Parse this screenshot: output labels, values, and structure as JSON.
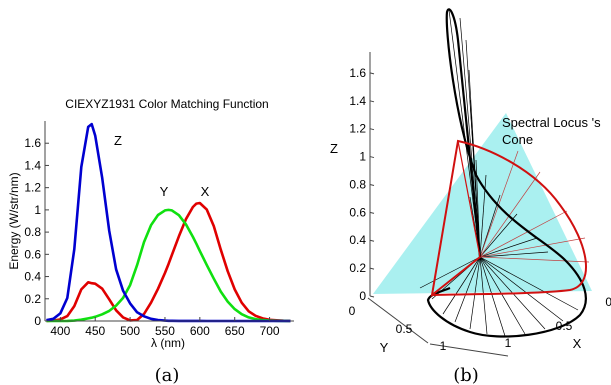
{
  "chart_data": [
    {
      "type": "line",
      "title": "CIEXYZ1931 Color Matching Function",
      "xlabel": "λ  (nm)",
      "ylabel": "Energy (W/str/nm)",
      "xlim": [
        378,
        735
      ],
      "ylim": [
        0,
        1.8
      ],
      "xticks": [
        "400",
        "450",
        "500",
        "550",
        "600",
        "650",
        "700"
      ],
      "yticks": [
        "0",
        "0.2",
        "0.4",
        "0.6",
        "0.8",
        "1",
        "1.2",
        "1.4",
        "1.6"
      ],
      "grid": false,
      "x": [
        380,
        390,
        400,
        410,
        420,
        430,
        440,
        445,
        450,
        460,
        470,
        480,
        490,
        500,
        510,
        520,
        530,
        540,
        550,
        555,
        560,
        570,
        580,
        590,
        595,
        600,
        610,
        620,
        630,
        640,
        650,
        660,
        670,
        680,
        690,
        700,
        710,
        720,
        730
      ],
      "series": [
        {
          "name": "X",
          "color": "#e00000",
          "values": [
            0.001,
            0.004,
            0.014,
            0.044,
            0.134,
            0.284,
            0.348,
            0.34,
            0.336,
            0.291,
            0.195,
            0.096,
            0.032,
            0.005,
            0.009,
            0.063,
            0.165,
            0.29,
            0.433,
            0.512,
            0.595,
            0.762,
            0.916,
            1.026,
            1.057,
            1.062,
            1.003,
            0.854,
            0.642,
            0.448,
            0.284,
            0.165,
            0.087,
            0.047,
            0.023,
            0.011,
            0.006,
            0.003,
            0.001
          ]
        },
        {
          "name": "Y",
          "color": "#10e010",
          "values": [
            0.0,
            0.0,
            0.0,
            0.001,
            0.004,
            0.012,
            0.023,
            0.03,
            0.038,
            0.06,
            0.091,
            0.139,
            0.208,
            0.323,
            0.503,
            0.71,
            0.862,
            0.954,
            0.995,
            1.0,
            0.995,
            0.952,
            0.87,
            0.757,
            0.695,
            0.631,
            0.503,
            0.381,
            0.265,
            0.175,
            0.107,
            0.061,
            0.032,
            0.017,
            0.008,
            0.004,
            0.002,
            0.001,
            0.0
          ]
        },
        {
          "name": "Z",
          "color": "#0000d0",
          "values": [
            0.007,
            0.02,
            0.068,
            0.207,
            0.646,
            1.386,
            1.747,
            1.772,
            1.669,
            1.288,
            0.813,
            0.465,
            0.272,
            0.158,
            0.078,
            0.042,
            0.02,
            0.009,
            0.004,
            0.002,
            0.002,
            0.001,
            0.001,
            0.001,
            0.001,
            0.001,
            0.0,
            0.0,
            0.0,
            0.0,
            0.0,
            0.0,
            0.0,
            0.0,
            0.0,
            0.0,
            0.0,
            0.0,
            0.0
          ]
        }
      ],
      "annotations": [
        "Z",
        "Y",
        "X"
      ],
      "caption": "(a)"
    },
    {
      "type": "line",
      "subtype": "3d",
      "xlabel": "X",
      "ylabel": "Y",
      "zlabel": "Z",
      "xticks": [
        "0",
        "0.5",
        "1"
      ],
      "yticks": [
        "0",
        "0.5",
        "1"
      ],
      "zticks": [
        "0",
        "0.2",
        "0.4",
        "0.6",
        "0.8",
        "1",
        "1.2",
        "1.4",
        "1.6"
      ],
      "zlim": [
        0,
        1.75
      ],
      "cone_color": "#aaf0f0",
      "locus_color": "#000000",
      "triangle_color": "#d01010",
      "annotation": "Spectral Locus 's Cone",
      "caption": "(b)"
    }
  ]
}
